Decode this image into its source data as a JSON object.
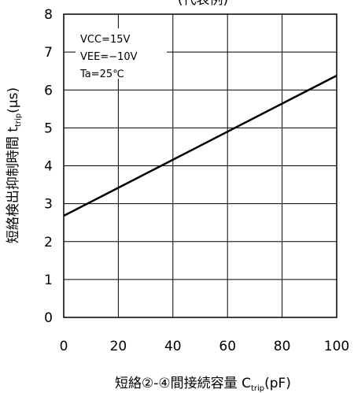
{
  "chart_data": {
    "type": "line",
    "title": "(代表例)",
    "x": [
      0,
      100
    ],
    "series": [
      {
        "values": [
          2.68,
          6.38
        ]
      }
    ],
    "xlabel": {
      "main": "短絡②-④間接続容量 C",
      "sub": "trip",
      "unit": "(pF)"
    },
    "ylabel": {
      "main": "短絡検出抑制時間 t",
      "sub": "trip",
      "unit": "(μs)"
    },
    "xlim": [
      0,
      100
    ],
    "ylim": [
      0,
      8
    ],
    "xticks": [
      0,
      20,
      40,
      60,
      80,
      100
    ],
    "yticks": [
      0,
      1,
      2,
      3,
      4,
      5,
      6,
      7,
      8
    ],
    "grid": true,
    "conditions": [
      "VCC=15V",
      "VEE=−10V",
      "Ta=25℃"
    ],
    "colors": {
      "line": "#000000",
      "grid": "#000000",
      "background": "#ffffff"
    }
  }
}
